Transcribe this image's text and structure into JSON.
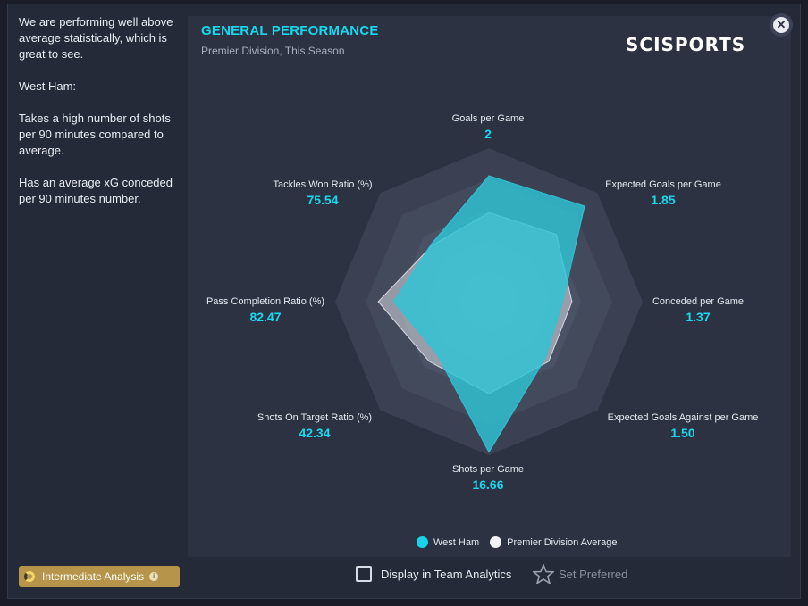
{
  "sidebar": {
    "paragraphs": [
      "We are performing well above average statistically, which is great to see.",
      "West Ham:",
      "Takes a high number of shots per 90 minutes compared to average.",
      "Has an average xG conceded per 90 minutes number."
    ]
  },
  "panel": {
    "title": "GENERAL PERFORMANCE",
    "subtitle": "Premier Division, This Season",
    "logo_text": "SCISPORTS"
  },
  "chart_data": {
    "type": "radar",
    "axes": [
      {
        "label": "Goals per Game",
        "value": "2"
      },
      {
        "label": "Expected Goals per Game",
        "value": "1.85"
      },
      {
        "label": "Conceded per Game",
        "value": "1.37"
      },
      {
        "label": "Expected Goals Against per Game",
        "value": "1.50"
      },
      {
        "label": "Shots per Game",
        "value": "16.66"
      },
      {
        "label": "Shots On Target Ratio (%)",
        "value": "42.34"
      },
      {
        "label": "Pass Completion Ratio (%)",
        "value": "82.47"
      },
      {
        "label": "Tackles Won Ratio (%)",
        "value": "75.54"
      }
    ],
    "series": [
      {
        "name": "West Ham",
        "color": "#2ec4d6",
        "normalized": [
          0.82,
          0.88,
          0.48,
          0.52,
          0.98,
          0.48,
          0.62,
          0.53
        ]
      },
      {
        "name": "Premier Division Average",
        "color": "#d8dbe2",
        "normalized": [
          0.58,
          0.62,
          0.54,
          0.55,
          0.6,
          0.55,
          0.72,
          0.52
        ]
      }
    ],
    "rings": 5
  },
  "legend": {
    "items": [
      {
        "label": "West Ham",
        "color": "#18d3ea"
      },
      {
        "label": "Premier Division Average",
        "color": "#f2f3f6"
      }
    ]
  },
  "footer": {
    "analysis_badge": "Intermediate Analysis",
    "checkbox_label": "Display in Team Analytics",
    "preferred_label": "Set Preferred"
  }
}
